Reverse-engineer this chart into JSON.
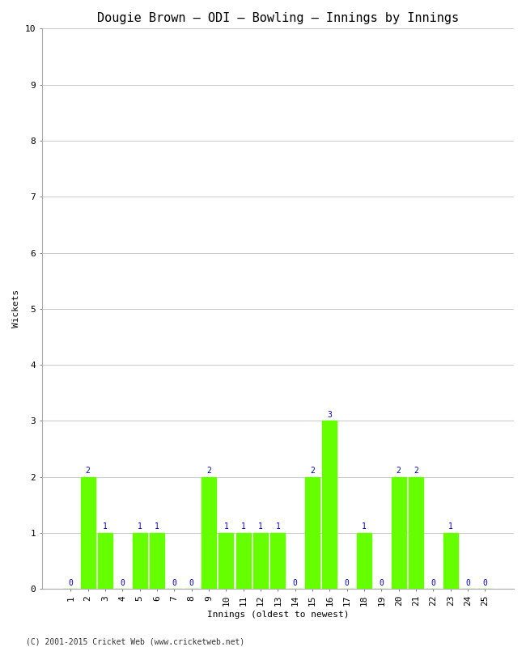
{
  "title": "Dougie Brown – ODI – Bowling – Innings by Innings",
  "xlabel": "Innings (oldest to newest)",
  "ylabel": "Wickets",
  "bar_color": "#66ff00",
  "label_color": "#0000cc",
  "background_color": "#ffffff",
  "grid_color": "#cccccc",
  "innings": [
    1,
    2,
    3,
    4,
    5,
    6,
    7,
    8,
    9,
    10,
    11,
    12,
    13,
    14,
    15,
    16,
    17,
    18,
    19,
    20,
    21,
    22,
    23,
    24,
    25
  ],
  "wickets": [
    0,
    2,
    1,
    0,
    1,
    1,
    0,
    0,
    2,
    1,
    1,
    1,
    1,
    0,
    2,
    3,
    0,
    1,
    0,
    2,
    2,
    0,
    1,
    0,
    0
  ],
  "ylim": [
    0,
    10
  ],
  "yticks": [
    0,
    1,
    2,
    3,
    4,
    5,
    6,
    7,
    8,
    9,
    10
  ],
  "footer": "(C) 2001-2015 Cricket Web (www.cricketweb.net)",
  "title_fontsize": 11,
  "axis_label_fontsize": 8,
  "tick_fontsize": 8,
  "annotation_fontsize": 7,
  "footer_fontsize": 7,
  "bar_width": 0.85
}
